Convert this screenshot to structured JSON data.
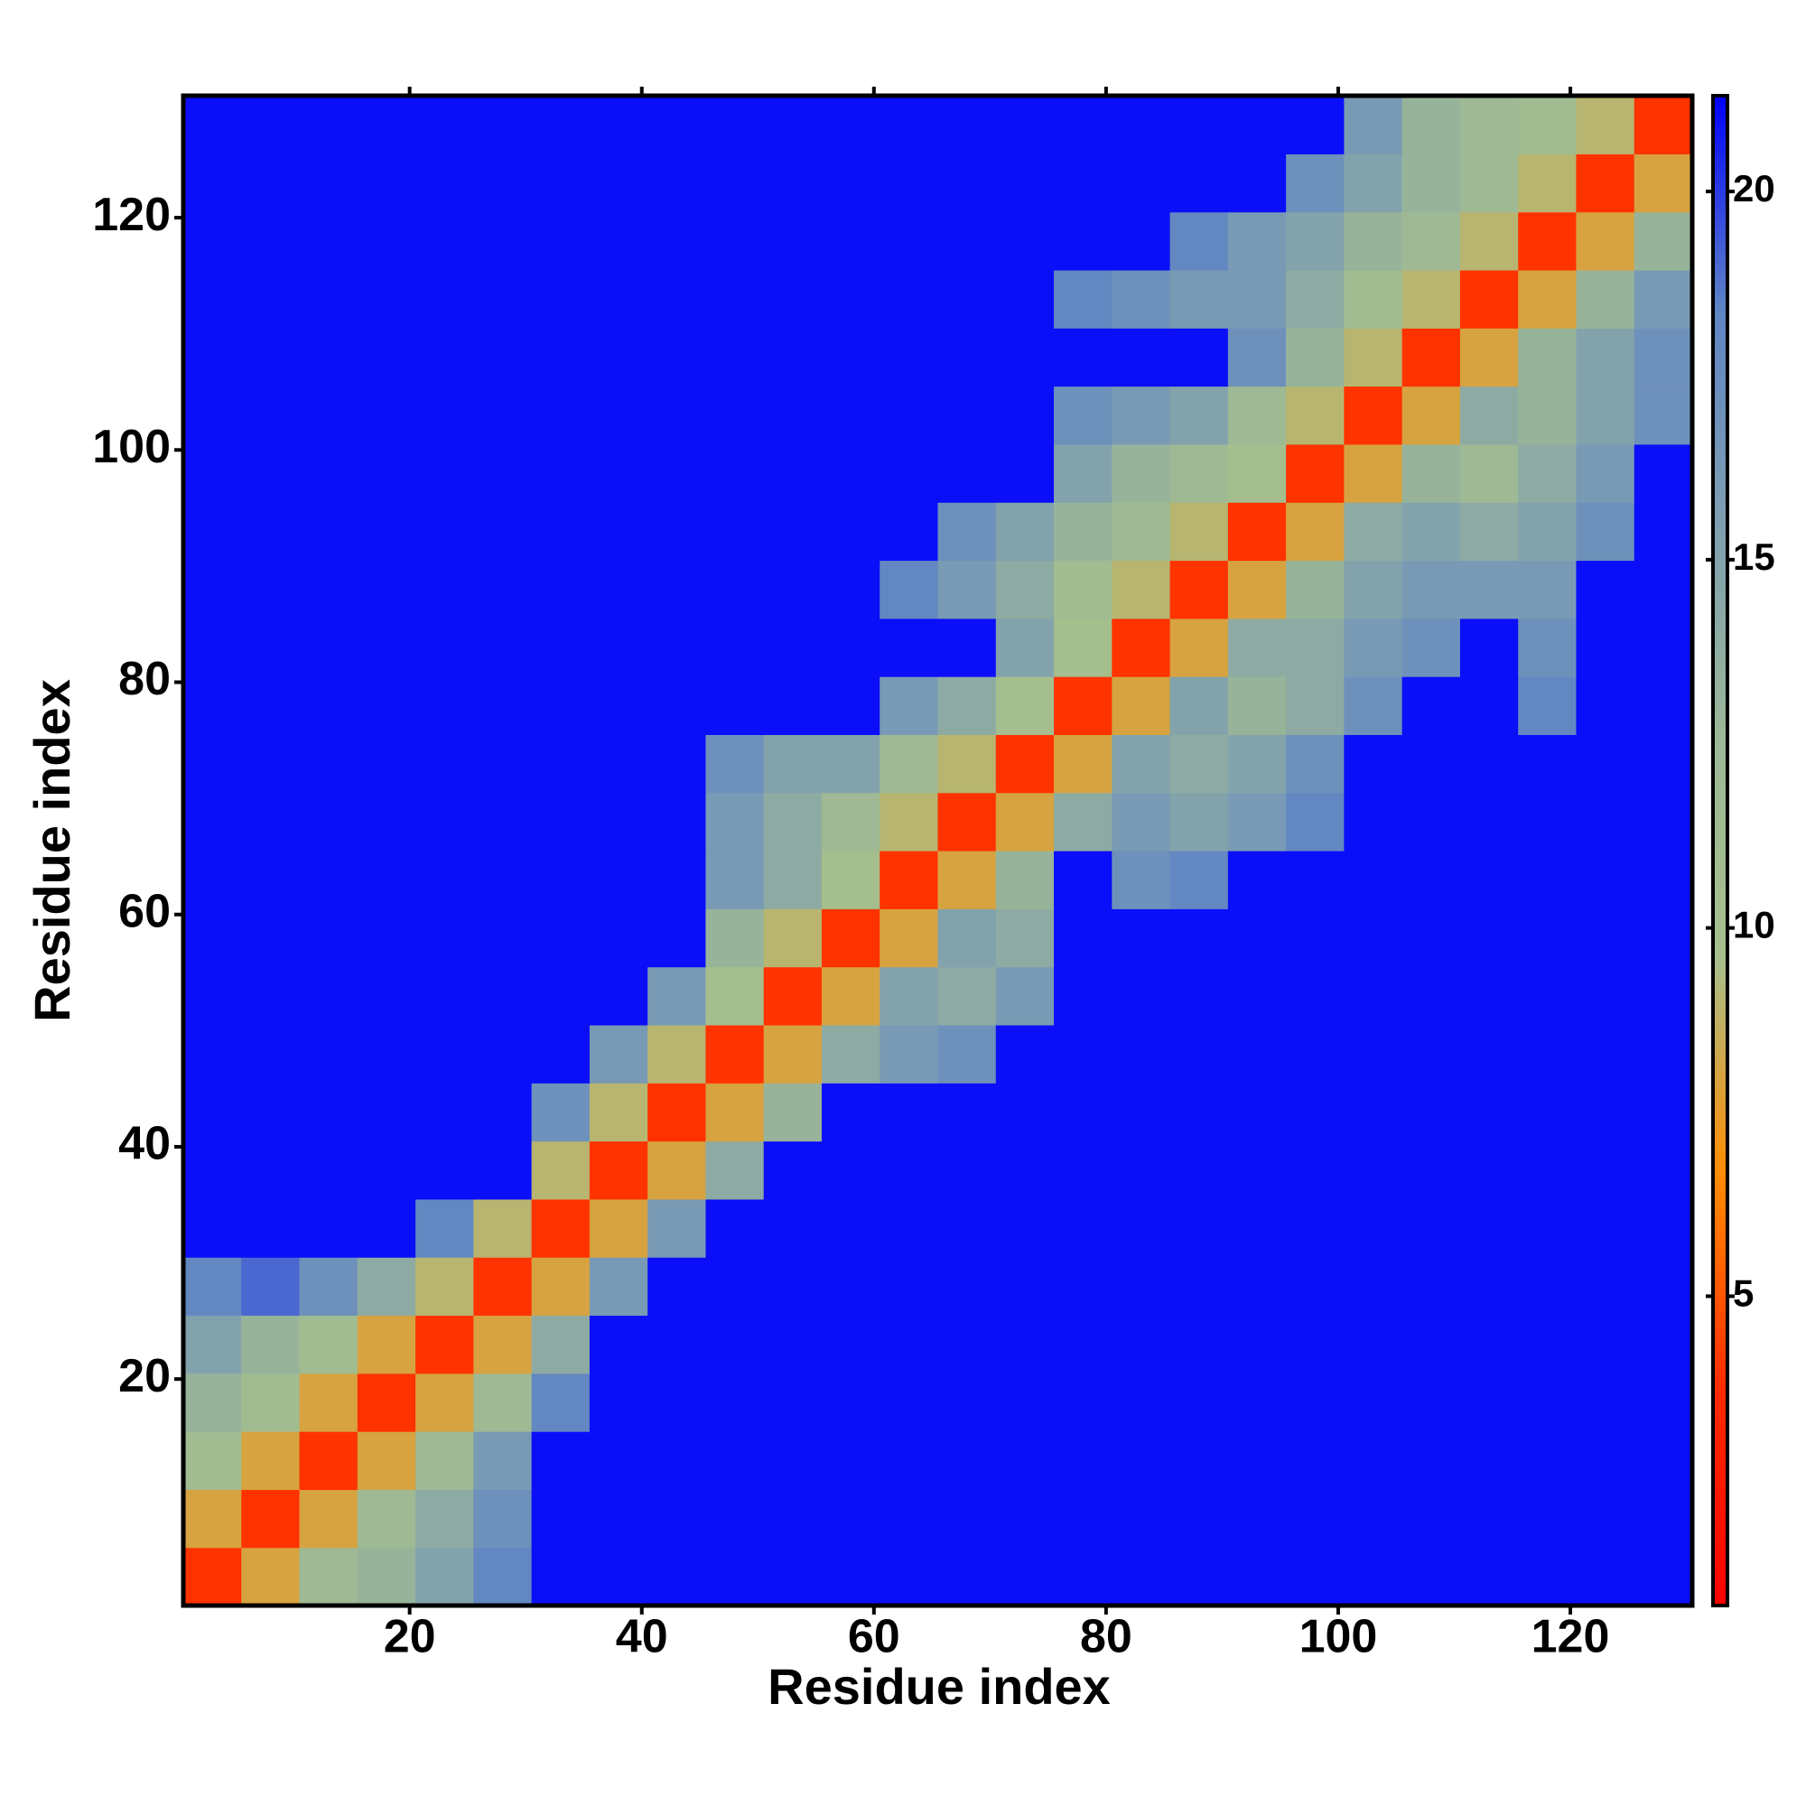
{
  "chart_data": {
    "type": "heatmap",
    "x_label": "Residue index",
    "y_label": "Residue index",
    "x": [
      3,
      8,
      13,
      18,
      23,
      28,
      33,
      38,
      43,
      48,
      53,
      58,
      63,
      68,
      73,
      78,
      83,
      88,
      93,
      98,
      103,
      108,
      113,
      118,
      123,
      128
    ],
    "y": [
      3,
      8,
      13,
      18,
      23,
      28,
      33,
      38,
      43,
      48,
      53,
      58,
      63,
      68,
      73,
      78,
      83,
      88,
      93,
      98,
      103,
      108,
      113,
      118,
      123,
      128
    ],
    "z": [
      [
        4,
        8,
        12,
        13,
        15,
        18,
        21,
        21,
        21,
        21,
        21,
        21,
        21,
        21,
        21,
        21,
        21,
        21,
        21,
        21,
        21,
        21,
        21,
        21,
        21,
        21
      ],
      [
        8,
        4,
        8,
        12,
        14,
        17,
        21,
        21,
        21,
        21,
        21,
        21,
        21,
        21,
        21,
        21,
        21,
        21,
        21,
        21,
        21,
        21,
        21,
        21,
        21,
        21
      ],
      [
        11,
        8,
        4,
        8,
        12,
        16,
        21,
        21,
        21,
        21,
        21,
        21,
        21,
        21,
        21,
        21,
        21,
        21,
        21,
        21,
        21,
        21,
        21,
        21,
        21,
        21
      ],
      [
        13,
        11,
        8,
        4,
        8,
        12,
        18,
        21,
        21,
        21,
        21,
        21,
        21,
        21,
        21,
        21,
        21,
        21,
        21,
        21,
        21,
        21,
        21,
        21,
        21,
        21
      ],
      [
        15,
        13,
        11,
        8,
        4,
        8,
        14,
        21,
        21,
        21,
        21,
        21,
        21,
        21,
        21,
        21,
        21,
        21,
        21,
        21,
        21,
        21,
        21,
        21,
        21,
        21
      ],
      [
        18,
        19,
        17,
        14,
        9,
        4,
        8,
        16,
        21,
        21,
        21,
        21,
        21,
        21,
        21,
        21,
        21,
        21,
        21,
        21,
        21,
        21,
        21,
        21,
        21,
        21
      ],
      [
        21,
        21,
        21,
        21,
        18,
        9,
        4,
        8,
        16,
        21,
        21,
        21,
        21,
        21,
        21,
        21,
        21,
        21,
        21,
        21,
        21,
        21,
        21,
        21,
        21,
        21
      ],
      [
        21,
        21,
        21,
        21,
        21,
        21,
        9,
        4,
        8,
        14,
        21,
        21,
        21,
        21,
        21,
        21,
        21,
        21,
        21,
        21,
        21,
        21,
        21,
        21,
        21,
        21
      ],
      [
        21,
        21,
        21,
        21,
        21,
        21,
        17,
        9,
        4,
        8,
        13,
        21,
        21,
        21,
        21,
        21,
        21,
        21,
        21,
        21,
        21,
        21,
        21,
        21,
        21,
        21
      ],
      [
        21,
        21,
        21,
        21,
        21,
        21,
        21,
        16,
        9,
        4,
        8,
        14,
        16,
        17,
        21,
        21,
        21,
        21,
        21,
        21,
        21,
        21,
        21,
        21,
        21,
        21
      ],
      [
        21,
        21,
        21,
        21,
        21,
        21,
        21,
        21,
        16,
        10,
        4,
        8,
        15,
        14,
        16,
        21,
        21,
        21,
        21,
        21,
        21,
        21,
        21,
        21,
        21,
        21
      ],
      [
        21,
        21,
        21,
        21,
        21,
        21,
        21,
        21,
        21,
        13,
        9,
        4,
        8,
        15,
        14,
        21,
        21,
        21,
        21,
        21,
        21,
        21,
        21,
        21,
        21,
        21
      ],
      [
        21,
        21,
        21,
        21,
        21,
        21,
        21,
        21,
        21,
        16,
        14,
        10,
        4,
        8,
        13,
        21,
        17,
        18,
        21,
        21,
        21,
        21,
        21,
        21,
        21,
        21
      ],
      [
        21,
        21,
        21,
        21,
        21,
        21,
        21,
        21,
        21,
        16,
        14,
        12,
        9,
        4,
        8,
        14,
        16,
        15,
        16,
        18,
        21,
        21,
        21,
        21,
        21,
        21
      ],
      [
        21,
        21,
        21,
        21,
        21,
        21,
        21,
        21,
        21,
        17,
        15,
        15,
        12,
        9,
        4,
        8,
        15,
        14,
        15,
        17,
        21,
        21,
        21,
        21,
        21,
        21
      ],
      [
        21,
        21,
        21,
        21,
        21,
        21,
        21,
        21,
        21,
        21,
        21,
        21,
        16,
        14,
        10,
        4,
        8,
        15,
        13,
        14,
        17,
        21,
        21,
        18,
        21,
        21
      ],
      [
        21,
        21,
        21,
        21,
        21,
        21,
        21,
        21,
        21,
        21,
        21,
        21,
        21,
        21,
        15,
        10,
        4,
        8,
        14,
        14,
        16,
        17,
        21,
        17,
        21,
        21
      ],
      [
        21,
        21,
        21,
        21,
        21,
        21,
        21,
        21,
        21,
        21,
        21,
        21,
        18,
        16,
        14,
        11,
        9,
        4,
        8,
        13,
        15,
        16,
        16,
        16,
        21,
        21
      ],
      [
        21,
        21,
        21,
        21,
        21,
        21,
        21,
        21,
        21,
        21,
        21,
        21,
        21,
        17,
        15,
        13,
        12,
        9,
        4,
        8,
        14,
        15,
        14,
        15,
        17,
        21
      ],
      [
        21,
        21,
        21,
        21,
        21,
        21,
        21,
        21,
        21,
        21,
        21,
        21,
        21,
        21,
        21,
        15,
        13,
        12,
        10,
        4,
        8,
        13,
        12,
        14,
        16,
        21
      ],
      [
        21,
        21,
        21,
        21,
        21,
        21,
        21,
        21,
        21,
        21,
        21,
        21,
        21,
        21,
        21,
        17,
        16,
        15,
        12,
        9,
        4,
        8,
        14,
        13,
        15,
        17
      ],
      [
        21,
        21,
        21,
        21,
        21,
        21,
        21,
        21,
        21,
        21,
        21,
        21,
        21,
        21,
        21,
        21,
        21,
        21,
        17,
        13,
        9,
        4,
        8,
        13,
        15,
        17
      ],
      [
        21,
        21,
        21,
        21,
        21,
        21,
        21,
        21,
        21,
        21,
        21,
        21,
        21,
        21,
        21,
        18,
        17,
        16,
        16,
        14,
        11,
        9,
        4,
        8,
        13,
        16
      ],
      [
        21,
        21,
        21,
        21,
        21,
        21,
        21,
        21,
        21,
        21,
        21,
        21,
        21,
        21,
        21,
        21,
        21,
        18,
        16,
        15,
        13,
        12,
        9,
        4,
        8,
        13
      ],
      [
        21,
        21,
        21,
        21,
        21,
        21,
        21,
        21,
        21,
        21,
        21,
        21,
        21,
        21,
        21,
        21,
        21,
        21,
        21,
        17,
        15,
        13,
        12,
        9,
        4,
        8
      ],
      [
        21,
        21,
        21,
        21,
        21,
        21,
        21,
        21,
        21,
        21,
        21,
        21,
        21,
        21,
        21,
        21,
        21,
        21,
        21,
        21,
        16,
        13,
        12,
        11,
        9,
        4
      ]
    ],
    "xlim": [
      0.5,
      130.5
    ],
    "ylim": [
      0.5,
      130.5
    ],
    "xticks": [
      20,
      40,
      60,
      80,
      100,
      120
    ],
    "yticks": [
      20,
      40,
      60,
      80,
      100,
      120
    ],
    "zlim": [
      0.8,
      21.3
    ],
    "zticks": [
      5,
      10,
      15,
      20
    ],
    "colors": [
      "#ff0000",
      "#ff2a00",
      "#ff8c00",
      "#a6bf8c",
      "#9cb896",
      "#7f9fb0",
      "#5f85c4",
      "#0000ff"
    ]
  }
}
